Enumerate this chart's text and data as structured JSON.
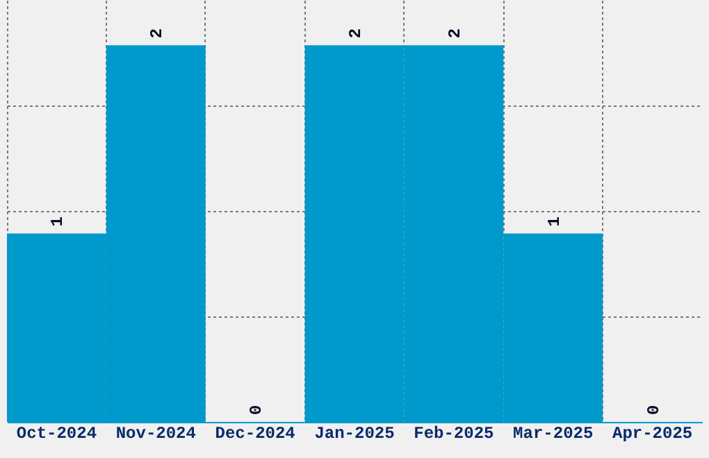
{
  "chart_data": {
    "type": "bar",
    "categories": [
      "Oct-2024",
      "Nov-2024",
      "Dec-2024",
      "Jan-2025",
      "Feb-2025",
      "Mar-2025",
      "Apr-2025"
    ],
    "values": [
      1,
      2,
      0,
      2,
      2,
      1,
      0
    ],
    "color": "#0099cc",
    "data_labels": true,
    "grid": true,
    "tick_labels": "x",
    "ylim": [
      0,
      2.24
    ],
    "yticks": [
      {
        "value": 0.56,
        "label": null
      },
      {
        "value": 1.12,
        "label": null
      },
      {
        "value": 1.68,
        "label": null
      }
    ]
  }
}
